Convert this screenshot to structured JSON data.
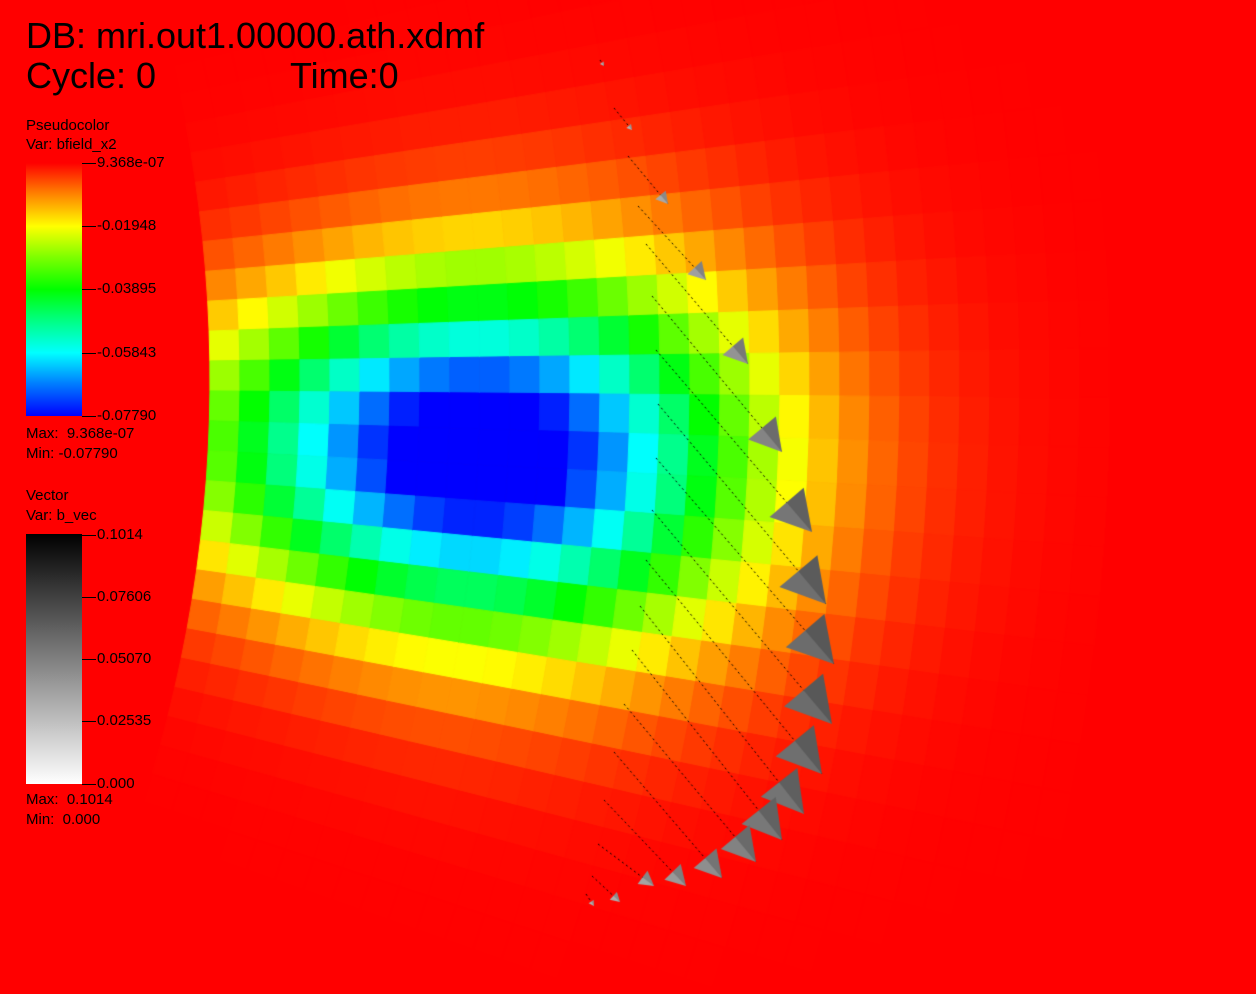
{
  "header": {
    "db_line": "DB: mri.out1.00000.ath.xdmf",
    "cycle_label": "Cycle: 0",
    "time_label": "Time:0"
  },
  "pseudocolor_legend": {
    "plot_type": "Pseudocolor",
    "var": "Var: bfield_x2",
    "ticks": [
      "9.368e-07",
      "-0.01948",
      "-0.03895",
      "-0.05843",
      "-0.07790"
    ],
    "max": "Max:  9.368e-07",
    "min": "Min: -0.07790",
    "colormap": [
      "#ff0000",
      "#ff8000",
      "#ffff00",
      "#80ff00",
      "#00ff00",
      "#00ff80",
      "#00ffff",
      "#0080ff",
      "#0000ff"
    ]
  },
  "vector_legend": {
    "plot_type": "Vector",
    "var": "Var: b_vec",
    "ticks": [
      "0.1014",
      "0.07606",
      "0.05070",
      "0.02535",
      "0.000"
    ],
    "max": "Max:  0.1014",
    "min": "Min:  0.000"
  },
  "field": {
    "min_value": -0.0779,
    "max_value": 9.368e-07,
    "background_color": "#ff0000"
  }
}
